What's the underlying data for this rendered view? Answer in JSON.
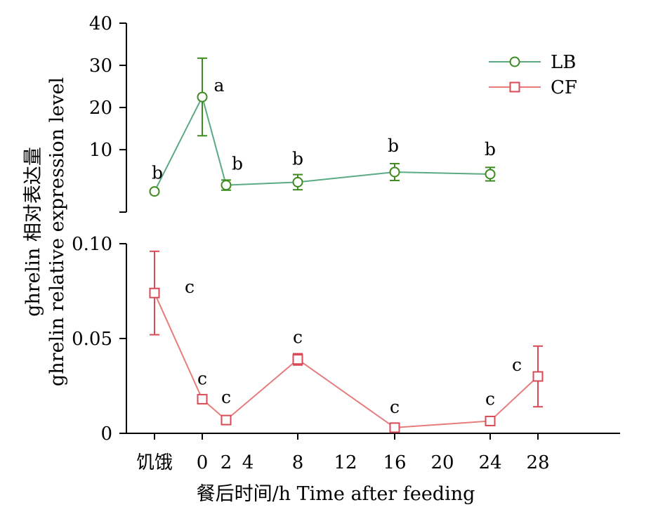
{
  "chart_data": {
    "type": "line",
    "xlabel": "餐后时间/h Time after feeding",
    "ylabel_line1": "ghrelin 相对表达量",
    "ylabel_line2": "ghrelin relative expression level",
    "x_ticks": [
      "饥饿",
      "0",
      "2",
      "4",
      "8",
      "12",
      "16",
      "20",
      "24",
      "28"
    ],
    "y_ticks_upper": [
      "40",
      "30",
      "20",
      "10"
    ],
    "y_ticks_lower": [
      "0.10",
      "0.05",
      "0"
    ],
    "ylim_upper": [
      0,
      40
    ],
    "ylim_lower": [
      0,
      0.1
    ],
    "legend_position": "top-right",
    "series": [
      {
        "name": "LB",
        "color": "#5aaa84",
        "marker_color": "#3d8a1f",
        "marker": "circle",
        "axis": "upper",
        "points": [
          {
            "x": "饥饿",
            "y": 0.1,
            "err": 0,
            "label": "b"
          },
          {
            "x": "0",
            "y": 22.5,
            "err": 9.2,
            "label": "a"
          },
          {
            "x": "2",
            "y": 1.6,
            "err": 1.2,
            "label": "b"
          },
          {
            "x": "8",
            "y": 2.3,
            "err": 1.8,
            "label": "b"
          },
          {
            "x": "16",
            "y": 4.7,
            "err": 2.0,
            "label": "b"
          },
          {
            "x": "24",
            "y": 4.2,
            "err": 1.6,
            "label": "b"
          }
        ]
      },
      {
        "name": "CF",
        "color": "#e67c7c",
        "marker_color": "#d94a55",
        "marker": "square",
        "axis": "lower",
        "points": [
          {
            "x": "饥饿",
            "y": 0.074,
            "err": 0.022,
            "label": "c"
          },
          {
            "x": "0",
            "y": 0.018,
            "err": 0.002,
            "label": "c"
          },
          {
            "x": "2",
            "y": 0.007,
            "err": 0.001,
            "label": "c"
          },
          {
            "x": "8",
            "y": 0.039,
            "err": 0.003,
            "label": "c"
          },
          {
            "x": "16",
            "y": 0.003,
            "err": 0.001,
            "label": "c"
          },
          {
            "x": "24",
            "y": 0.0065,
            "err": 0.001,
            "label": "c"
          },
          {
            "x": "28",
            "y": 0.03,
            "err": 0.016,
            "label": "c"
          }
        ]
      }
    ]
  }
}
